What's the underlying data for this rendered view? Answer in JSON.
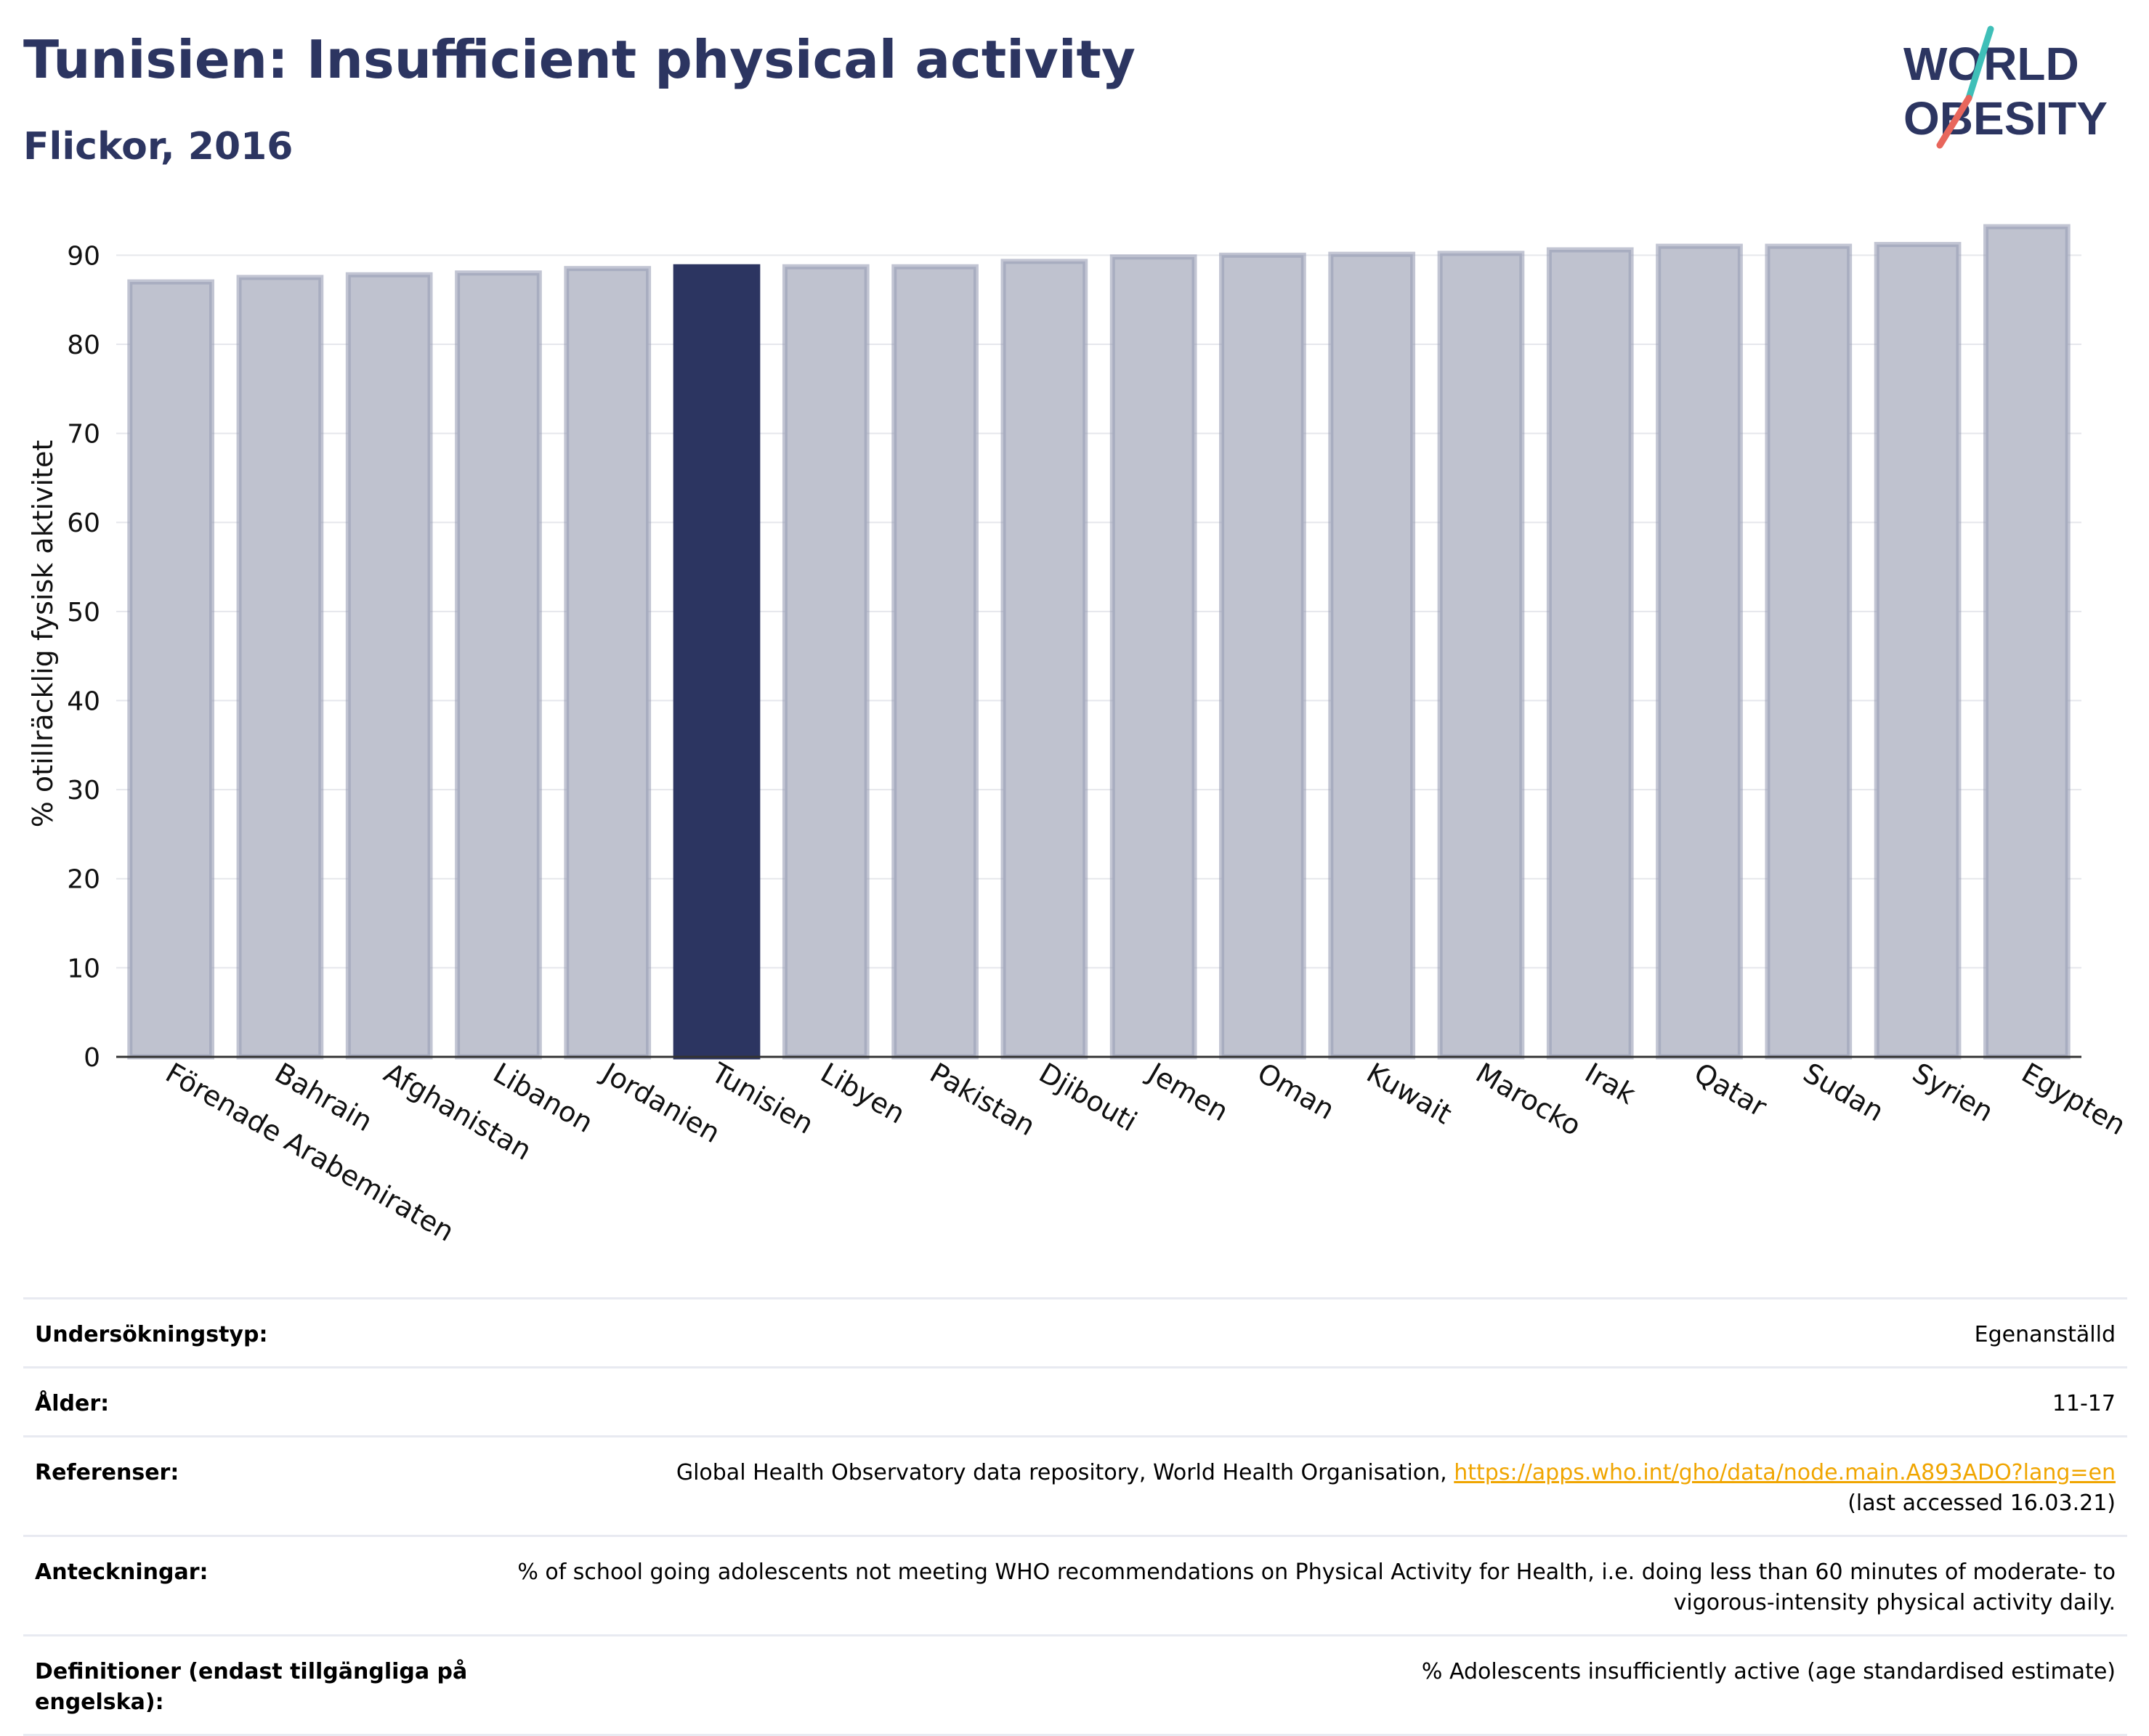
{
  "header": {
    "title": "Tunisien: Insufficient physical activity",
    "subtitle": "Flickor, 2016"
  },
  "logo": {
    "line1": "WORLD",
    "line2": "OBESITY"
  },
  "colors": {
    "highlight": "#2c3561",
    "bar": "#bfc2cf",
    "bar_border": "#9a9fb6",
    "accent_teal": "#3fbfb8",
    "accent_coral": "#e8665c"
  },
  "chart_data": {
    "type": "bar",
    "ylabel": "% otillräcklig fysisk aktivitet",
    "ylim": [
      0,
      95
    ],
    "yticks": [
      0,
      10,
      20,
      30,
      40,
      50,
      60,
      70,
      80,
      90
    ],
    "grid": true,
    "highlight": "Tunisien",
    "categories": [
      "Förenade Arabemiraten",
      "Bahrain",
      "Afghanistan",
      "Libanon",
      "Jordanien",
      "Tunisien",
      "Libyen",
      "Pakistan",
      "Djibouti",
      "Jemen",
      "Oman",
      "Kuwait",
      "Marocko",
      "Irak",
      "Qatar",
      "Sudan",
      "Syrien",
      "Egypten"
    ],
    "values": [
      87.0,
      87.5,
      87.8,
      88.0,
      88.5,
      88.7,
      88.7,
      88.7,
      89.3,
      89.8,
      90.0,
      90.1,
      90.2,
      90.6,
      91.0,
      91.0,
      91.2,
      93.2
    ]
  },
  "info": [
    {
      "label": "Undersökningstyp:",
      "value": "Egenanställd"
    },
    {
      "label": "Ålder:",
      "value": "11-17"
    },
    {
      "label": "Referenser:",
      "value": "Global Health Observatory data repository, World Health Organisation,",
      "link": "https://apps.who.int/gho/data/node.main.A893ADO?lang=en",
      "note": "(last accessed 16.03.21)"
    },
    {
      "label": "Anteckningar:",
      "value": "% of school going adolescents not meeting WHO recommendations on Physical Activity for Health, i.e. doing less than 60 minutes of moderate- to vigorous-intensity physical activity daily."
    },
    {
      "label": "Definitioner (endast tillgängliga på engelska):",
      "value": "% Adolescents insufficiently active (age standardised estimate)"
    }
  ]
}
